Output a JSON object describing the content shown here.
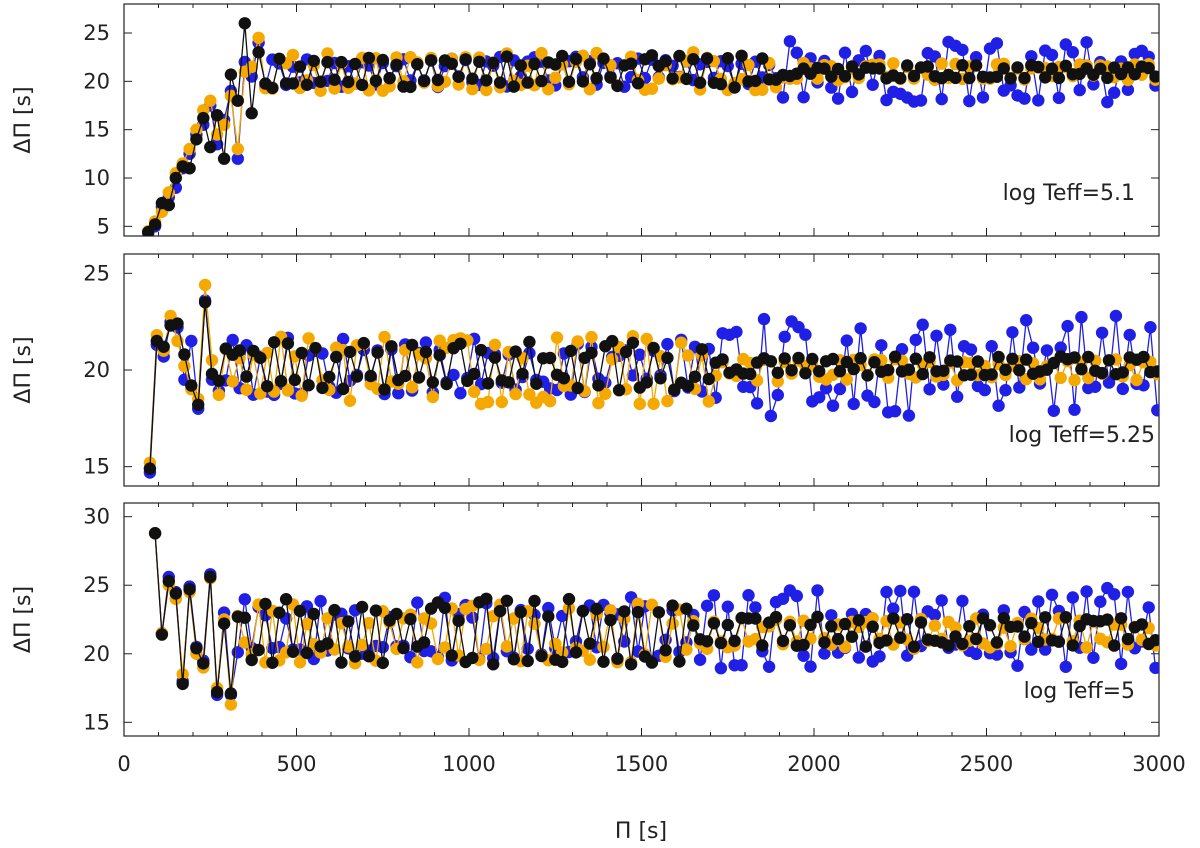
{
  "figure": {
    "x_axis_title": "Π [s]",
    "x_tick_labels": [
      "0",
      "500",
      "1000",
      "1500",
      "2000",
      "2500",
      "3000"
    ],
    "series_colors": {
      "blue": "#1f1fe6",
      "orange": "#f5a800",
      "black": "#111111"
    }
  },
  "chart_data": [
    {
      "type": "line",
      "panel": "top",
      "annotation": "log Teff=5.1",
      "ylabel": "ΔΠ [s]",
      "xlim": [
        0,
        3000
      ],
      "ylim": [
        4,
        28
      ],
      "x_ticks": [
        0,
        500,
        1000,
        1500,
        2000,
        2500,
        3000
      ],
      "y_ticks": [
        5,
        10,
        15,
        20,
        25
      ],
      "y_tick_labels": [
        "5",
        "10",
        "15",
        "20",
        "25"
      ],
      "series": [
        {
          "name": "blue",
          "color": "#1f1fe6",
          "x_range": [
            70,
            3000
          ],
          "initial_values": [
            4.3,
            5.0,
            7.0,
            8.0,
            9.0,
            11.0,
            12.5,
            14.5,
            15.5,
            17.5,
            13.5,
            16.0,
            19.0,
            12.0,
            22.0,
            20.5,
            24.0
          ],
          "tail_baseline": 21.0,
          "tail_amplitude_early": 1.6,
          "tail_amplitude_late": 3.2,
          "tail_start": 1900
        },
        {
          "name": "orange",
          "color": "#f5a800",
          "x_range": [
            70,
            3000
          ],
          "initial_values": [
            4.5,
            5.5,
            6.5,
            8.5,
            10.5,
            11.5,
            13.0,
            15.0,
            17.0,
            18.0,
            14.5,
            15.5,
            18.5,
            13.0,
            21.0,
            21.5,
            24.5
          ],
          "tail_baseline": 21.0,
          "tail_amplitude_early": 2.0,
          "tail_amplitude_late": 0.9,
          "tail_start": 1900
        },
        {
          "name": "black",
          "color": "#111111",
          "x_range": [
            70,
            3000
          ],
          "initial_values": [
            4.4,
            5.2,
            7.4,
            7.2,
            10.0,
            11.2,
            11.0,
            14.0,
            16.2,
            13.2,
            16.5,
            12.0,
            20.7,
            18.0,
            26.0,
            16.7,
            23.0
          ],
          "tail_baseline": 21.0,
          "tail_amplitude_early": 1.7,
          "tail_amplitude_late": 0.7,
          "tail_start": 1900
        }
      ]
    },
    {
      "type": "line",
      "panel": "middle",
      "annotation": "log Teff=5.25",
      "ylabel": "ΔΠ [s]",
      "xlim": [
        0,
        3000
      ],
      "ylim": [
        14,
        26
      ],
      "x_ticks": [
        0,
        500,
        1000,
        1500,
        2000,
        2500,
        3000
      ],
      "y_ticks": [
        15,
        20,
        25
      ],
      "y_tick_labels": [
        "15",
        "20",
        "25"
      ],
      "series": [
        {
          "name": "blue",
          "color": "#1f1fe6",
          "x_range": [
            75,
            3000
          ],
          "initial_values": [
            14.7,
            21.3,
            20.7,
            22.5,
            22.2,
            19.5,
            21.5,
            18.0,
            23.6,
            19.5
          ],
          "tail_baseline": 20.2,
          "tail_amplitude_early": 1.5,
          "tail_amplitude_late": 2.6,
          "tail_start": 1700
        },
        {
          "name": "orange",
          "color": "#f5a800",
          "x_range": [
            75,
            3000
          ],
          "initial_values": [
            15.2,
            21.8,
            21.0,
            22.8,
            21.5,
            20.2,
            19.0,
            18.5,
            24.4,
            20.5
          ],
          "tail_baseline": 20.0,
          "tail_amplitude_early": 1.8,
          "tail_amplitude_late": 0.6,
          "tail_start": 1700
        },
        {
          "name": "black",
          "color": "#111111",
          "x_range": [
            75,
            3000
          ],
          "initial_values": [
            14.9,
            21.5,
            21.2,
            22.3,
            22.4,
            20.8,
            19.2,
            18.2,
            23.5,
            19.8
          ],
          "tail_baseline": 20.2,
          "tail_amplitude_early": 1.3,
          "tail_amplitude_late": 0.5,
          "tail_start": 1700
        }
      ]
    },
    {
      "type": "line",
      "panel": "bottom",
      "annotation": "log Teff=5",
      "ylabel": "ΔΠ [s]",
      "xlim": [
        0,
        3000
      ],
      "ylim": [
        14,
        31
      ],
      "x_ticks": [
        0,
        500,
        1000,
        1500,
        2000,
        2500,
        3000
      ],
      "y_ticks": [
        15,
        20,
        25,
        30
      ],
      "y_tick_labels": [
        "15",
        "20",
        "25",
        "30"
      ],
      "series": [
        {
          "name": "blue",
          "color": "#1f1fe6",
          "x_range": [
            90,
            3000
          ],
          "initial_values": [
            28.8,
            21.5,
            25.6,
            24.5,
            18.0,
            24.9,
            20.5,
            19.5,
            25.8,
            17.0,
            23.0,
            17.0
          ],
          "tail_baseline": 21.8,
          "tail_amplitude_early": 2.4,
          "tail_amplitude_late": 3.0,
          "tail_start": 1650
        },
        {
          "name": "orange",
          "color": "#f5a800",
          "x_range": [
            90,
            3000
          ],
          "initial_values": [
            28.8,
            21.5,
            25.0,
            24.0,
            18.5,
            24.5,
            20.0,
            19.0,
            25.5,
            17.5,
            22.5,
            16.3
          ],
          "tail_baseline": 21.5,
          "tail_amplitude_early": 2.2,
          "tail_amplitude_late": 1.2,
          "tail_start": 1650
        },
        {
          "name": "black",
          "color": "#111111",
          "x_range": [
            90,
            3000
          ],
          "initial_values": [
            28.8,
            21.4,
            25.3,
            24.4,
            17.8,
            24.7,
            20.4,
            19.3,
            25.6,
            17.2,
            22.2,
            17.1
          ],
          "tail_baseline": 21.6,
          "tail_amplitude_early": 2.5,
          "tail_amplitude_late": 1.1,
          "tail_start": 1650
        }
      ]
    }
  ]
}
